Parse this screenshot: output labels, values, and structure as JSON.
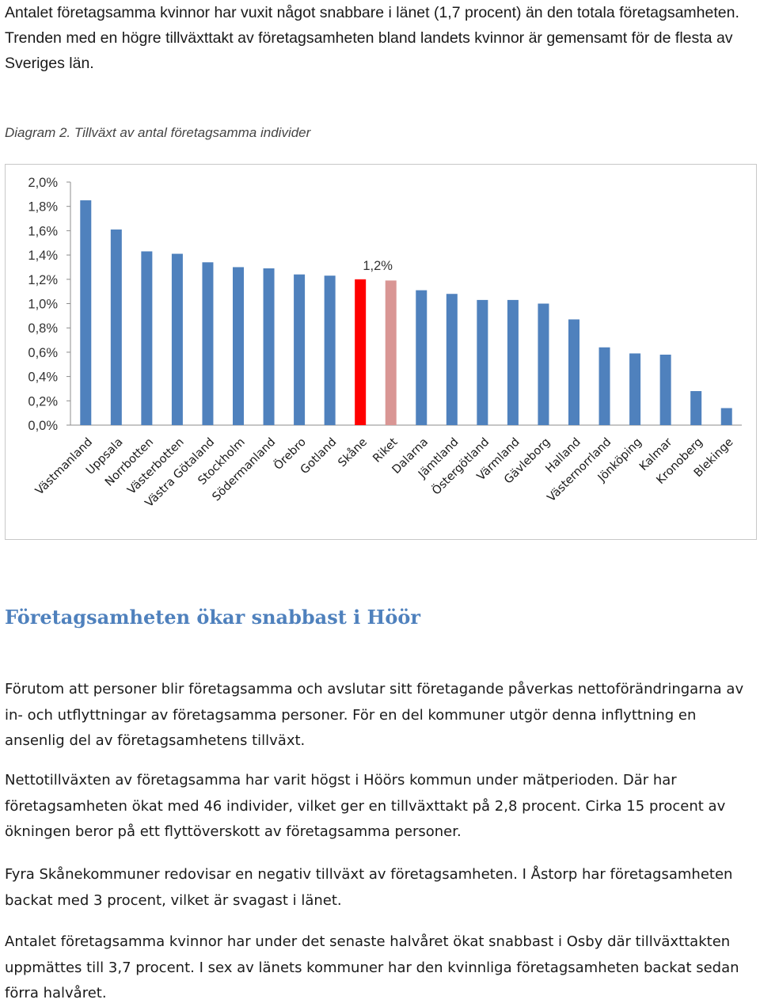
{
  "intro_text": "Antalet företagsamma kvinnor har vuxit något snabbare i länet (1,7 procent) än den totala företagsamheten. Trenden med en högre tillväxttakt av företagsamheten bland landets kvinnor är gemensamt för de flesta av Sveriges län.",
  "figure_caption": "Diagram 2. Tillväxt av antal företagsamma individer",
  "chart_data": {
    "type": "bar",
    "title": "",
    "xlabel": "",
    "ylabel": "",
    "ylim": [
      0,
      2.0
    ],
    "y_ticks": [
      "0,0%",
      "0,2%",
      "0,4%",
      "0,6%",
      "0,8%",
      "1,0%",
      "1,2%",
      "1,4%",
      "1,6%",
      "1,8%",
      "2,0%"
    ],
    "y_tick_values": [
      0,
      0.2,
      0.4,
      0.6,
      0.8,
      1.0,
      1.2,
      1.4,
      1.6,
      1.8,
      2.0
    ],
    "unit": "%",
    "grid": false,
    "legend": "none",
    "categories": [
      "Västmanland",
      "Uppsala",
      "Norrbotten",
      "Västerbotten",
      "Västra Götaland",
      "Stockholm",
      "Södermanland",
      "Örebro",
      "Gotland",
      "Skåne",
      "Riket",
      "Dalarna",
      "Jämtland",
      "Östergötland",
      "Värmland",
      "Gävleborg",
      "Halland",
      "Västernorrland",
      "Jönköping",
      "Kalmar",
      "Kronoberg",
      "Blekinge"
    ],
    "values": [
      1.85,
      1.61,
      1.43,
      1.41,
      1.34,
      1.3,
      1.29,
      1.24,
      1.23,
      1.2,
      1.19,
      1.11,
      1.08,
      1.03,
      1.03,
      1.0,
      0.87,
      0.64,
      0.59,
      0.58,
      0.28,
      0.14
    ],
    "colors": {
      "default": "#4f81bd",
      "Skåne": "#ff0000",
      "Riket": "#d99694"
    },
    "data_labels": [
      {
        "category": "Skåne",
        "text": "1,2%"
      }
    ]
  },
  "section_heading": "Företagsamheten ökar snabbast i Höör",
  "paragraphs": [
    "Förutom att personer blir företagsamma och avslutar sitt företagande påverkas nettoförändringarna av in- och utflyttningar av företagsamma personer. För en del kommuner utgör denna inflyttning en ansenlig del av företagsamhetens tillväxt.",
    "Nettotillväxten av företagsamma har varit högst i Höörs kommun under mätperioden. Där har företagsamheten ökat med 46 individer, vilket ger en tillväxttakt på 2,8 procent. Cirka 15 procent av ökningen beror på ett flyttöverskott av företagsamma personer.",
    "Fyra Skånekommuner redovisar en negativ tillväxt av företagsamheten. I Åstorp har företagsamheten backat med 3 procent, vilket är svagast i länet.",
    "Antalet företagsamma kvinnor har under det senaste halvåret ökat snabbast i Osby där tillväxttakten uppmättes till 3,7 procent. I sex av länets kommuner har den kvinnliga företagsamheten backat sedan förra halvåret."
  ]
}
